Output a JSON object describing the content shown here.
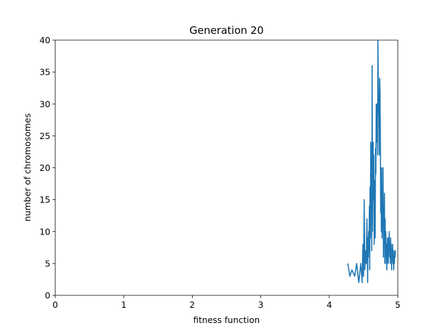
{
  "chart_data": {
    "type": "line",
    "title": "Generation 20",
    "xlabel": "fitness function",
    "ylabel": "number of chromosomes",
    "xlim": [
      0,
      5
    ],
    "ylim": [
      0,
      40
    ],
    "xticks": [
      "0",
      "1",
      "2",
      "3",
      "4",
      "5"
    ],
    "yticks": [
      "0",
      "5",
      "10",
      "15",
      "20",
      "25",
      "30",
      "35",
      "40"
    ],
    "grid": false,
    "line_color": "#1f77b4",
    "series": [
      {
        "x": [
          4.27,
          4.3,
          4.33,
          4.37,
          4.4,
          4.43,
          4.46,
          4.48,
          4.49,
          4.5,
          4.51,
          4.52,
          4.53,
          4.54,
          4.55,
          4.56,
          4.565,
          4.57,
          4.575,
          4.58,
          4.585,
          4.59,
          4.595,
          4.6,
          4.605,
          4.61,
          4.615,
          4.62,
          4.625,
          4.63,
          4.64,
          4.645,
          4.65,
          4.655,
          4.66,
          4.67,
          4.675,
          4.68,
          4.685,
          4.69,
          4.695,
          4.7,
          4.705,
          4.71,
          4.715,
          4.72,
          4.725,
          4.73,
          4.735,
          4.74,
          4.745,
          4.75,
          4.755,
          4.76,
          4.765,
          4.77,
          4.775,
          4.78,
          4.785,
          4.79,
          4.795,
          4.8,
          4.805,
          4.81,
          4.815,
          4.82,
          4.825,
          4.83,
          4.835,
          4.84,
          4.845,
          4.85,
          4.855,
          4.86,
          4.865,
          4.87,
          4.875,
          4.88,
          4.885,
          4.89,
          4.895,
          4.9,
          4.905,
          4.91,
          4.915,
          4.92,
          4.925,
          4.93,
          4.935,
          4.94,
          4.945,
          4.95,
          4.955,
          4.96,
          4.965
        ],
        "values": [
          5,
          3,
          4,
          3,
          5,
          2,
          5,
          2,
          8,
          3,
          15,
          4,
          7,
          5,
          12,
          2,
          9,
          6,
          10,
          7,
          14,
          4,
          17,
          9,
          24,
          16,
          19,
          7,
          36,
          10,
          24,
          15,
          22,
          8,
          18,
          9,
          23,
          19,
          30,
          24,
          26,
          30,
          22,
          40,
          34,
          30,
          28,
          22,
          34,
          32,
          26,
          13,
          20,
          10,
          20,
          9,
          13,
          11,
          20,
          6,
          14,
          8,
          16,
          5,
          12,
          6,
          10,
          5,
          8,
          4,
          7,
          9,
          6,
          5,
          9,
          7,
          10,
          6,
          8,
          5,
          9,
          7,
          8,
          4,
          7,
          6,
          8,
          5,
          7,
          4,
          6,
          5,
          7,
          6,
          7
        ]
      }
    ]
  }
}
